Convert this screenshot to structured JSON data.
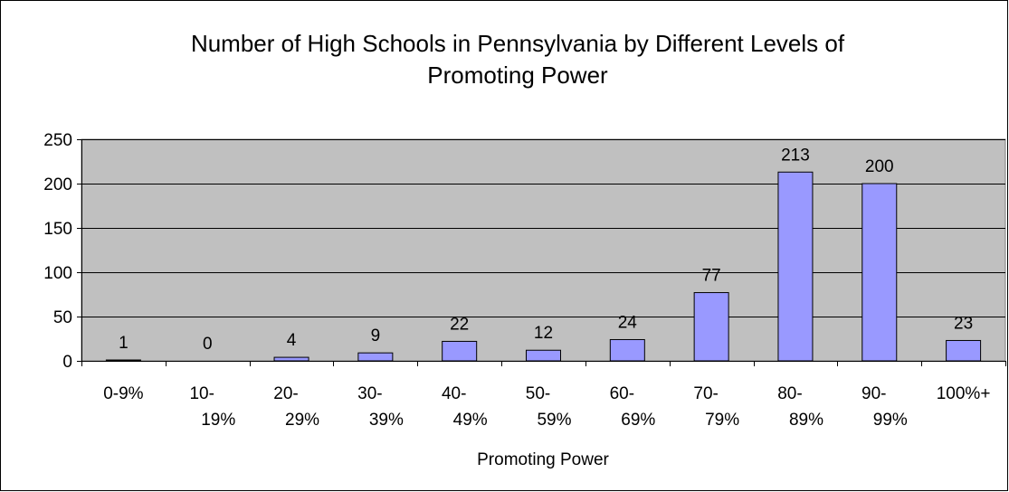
{
  "chart_data": {
    "type": "bar",
    "title_lines": [
      "Number of High Schools in Pennsylvania by Different Levels of",
      "Promoting Power"
    ],
    "xlabel": "Promoting Power",
    "ylabel": "",
    "categories": [
      [
        "0-9%"
      ],
      [
        "10-",
        "19%"
      ],
      [
        "20-",
        "29%"
      ],
      [
        "30-",
        "39%"
      ],
      [
        "40-",
        "49%"
      ],
      [
        "50-",
        "59%"
      ],
      [
        "60-",
        "69%"
      ],
      [
        "70-",
        "79%"
      ],
      [
        "80-",
        "89%"
      ],
      [
        "90-",
        "99%"
      ],
      [
        "100%+"
      ]
    ],
    "values": [
      1,
      0,
      4,
      9,
      22,
      12,
      24,
      77,
      213,
      200,
      23
    ],
    "data_labels": [
      "1",
      "0",
      "4",
      "9",
      "22",
      "12",
      "24",
      "77",
      "213",
      "200",
      "23"
    ],
    "ylim": [
      0,
      250
    ],
    "yticks": [
      0,
      50,
      100,
      150,
      200,
      250
    ],
    "grid": true,
    "legend": false,
    "colors": {
      "plot_background": "#c0c0c0",
      "bar_default": "#9999ff",
      "bar_first": "#000000",
      "bar_outline": "#000000",
      "gridline": "#000000"
    }
  }
}
